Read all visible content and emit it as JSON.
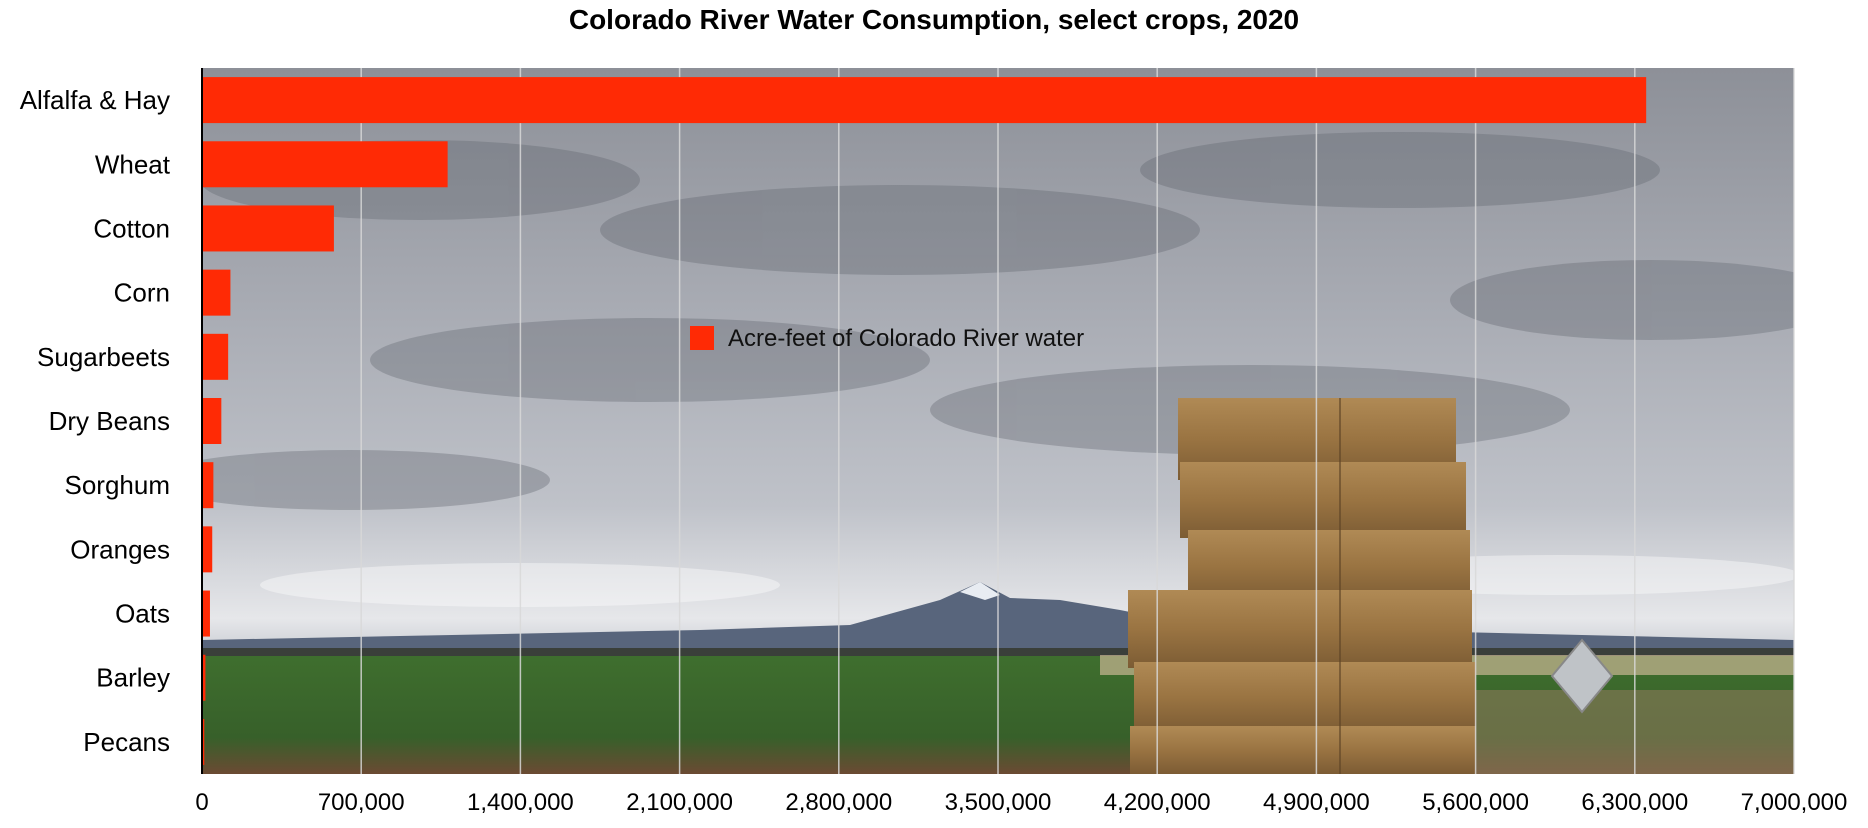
{
  "chart_data": {
    "type": "bar",
    "orientation": "horizontal",
    "title": "Colorado River Water Consumption, select crops, 2020",
    "xlabel": "",
    "ylabel": "",
    "categories": [
      "Alfalfa & Hay",
      "Wheat",
      "Cotton",
      "Corn",
      "Sugarbeets",
      "Dry Beans",
      "Sorghum",
      "Oranges",
      "Oats",
      "Barley",
      "Pecans"
    ],
    "series": [
      {
        "name": "Acre-feet of Colorado River water",
        "color": "#ff2a05",
        "values": [
          6350000,
          1080000,
          580000,
          125000,
          115000,
          85000,
          50000,
          45000,
          35000,
          15000,
          10000
        ]
      }
    ],
    "xlim": [
      0,
      7000000
    ],
    "xticks": [
      0,
      700000,
      1400000,
      2100000,
      2800000,
      3500000,
      4200000,
      4900000,
      5600000,
      6300000,
      7000000
    ],
    "xtick_labels": [
      "0",
      "700,000",
      "1,400,000",
      "2,100,000",
      "2,800,000",
      "3,500,000",
      "4,200,000",
      "4,900,000",
      "5,600,000",
      "6,300,000",
      "7,000,000"
    ],
    "grid": "vertical",
    "legend_position": "center",
    "background": "photograph of a landscape with stacked hay bales under a cloudy sky"
  }
}
